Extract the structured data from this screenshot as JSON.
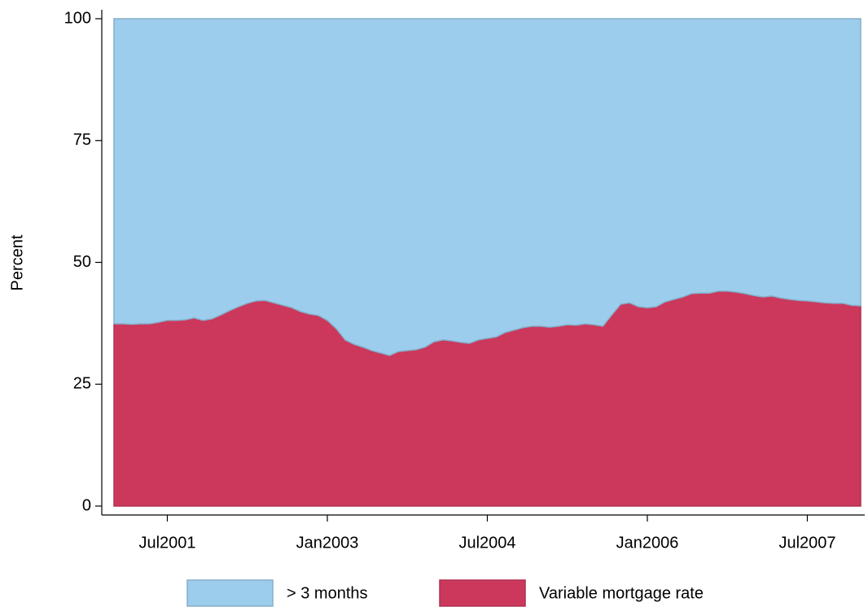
{
  "chart_data": {
    "type": "area",
    "stacked": true,
    "ylabel": "Percent",
    "x": [
      "2001-01",
      "2001-02",
      "2001-03",
      "2001-04",
      "2001-05",
      "2001-06",
      "2001-07",
      "2001-08",
      "2001-09",
      "2001-10",
      "2001-11",
      "2001-12",
      "2002-01",
      "2002-02",
      "2002-03",
      "2002-04",
      "2002-05",
      "2002-06",
      "2002-07",
      "2002-08",
      "2002-09",
      "2002-10",
      "2002-11",
      "2002-12",
      "2003-01",
      "2003-02",
      "2003-03",
      "2003-04",
      "2003-05",
      "2003-06",
      "2003-07",
      "2003-08",
      "2003-09",
      "2003-10",
      "2003-11",
      "2003-12",
      "2004-01",
      "2004-02",
      "2004-03",
      "2004-04",
      "2004-05",
      "2004-06",
      "2004-07",
      "2004-08",
      "2004-09",
      "2004-10",
      "2004-11",
      "2004-12",
      "2005-01",
      "2005-02",
      "2005-03",
      "2005-04",
      "2005-05",
      "2005-06",
      "2005-07",
      "2005-08",
      "2005-09",
      "2005-10",
      "2005-11",
      "2005-12",
      "2006-01",
      "2006-02",
      "2006-03",
      "2006-04",
      "2006-05",
      "2006-06",
      "2006-07",
      "2006-08",
      "2006-09",
      "2006-10",
      "2006-11",
      "2006-12",
      "2007-01",
      "2007-02",
      "2007-03",
      "2007-04",
      "2007-05",
      "2007-06",
      "2007-07",
      "2007-08",
      "2007-09",
      "2007-10",
      "2007-11",
      "2007-12",
      "2008-01"
    ],
    "series": [
      {
        "name": "> 3 months",
        "color": "#9ccdec",
        "values": [
          62.6,
          62.6,
          62.7,
          62.6,
          62.6,
          62.3,
          61.9,
          61.9,
          61.8,
          61.4,
          61.9,
          61.6,
          60.8,
          59.9,
          59.1,
          58.4,
          57.9,
          57.8,
          58.3,
          58.8,
          59.3,
          60.1,
          60.6,
          60.9,
          61.9,
          63.6,
          65.9,
          66.8,
          67.4,
          68.1,
          68.6,
          69.1,
          68.3,
          68.1,
          67.9,
          67.4,
          66.3,
          65.9,
          66.1,
          66.4,
          66.6,
          65.9,
          65.6,
          65.3,
          64.4,
          63.9,
          63.4,
          63.1,
          63.1,
          63.3,
          63.1,
          62.8,
          62.9,
          62.6,
          62.8,
          63.1,
          60.8,
          58.6,
          58.3,
          59.1,
          59.3,
          59.1,
          58.1,
          57.6,
          57.1,
          56.4,
          56.3,
          56.3,
          55.9,
          55.9,
          56.1,
          56.4,
          56.8,
          57.1,
          56.9,
          57.3,
          57.6,
          57.8,
          57.9,
          58.1,
          58.3,
          58.4,
          58.4,
          58.8,
          58.9
        ]
      },
      {
        "name": "Variable mortgage rate",
        "color": "#cc385c",
        "values": [
          37.4,
          37.4,
          37.3,
          37.4,
          37.4,
          37.7,
          38.1,
          38.1,
          38.2,
          38.6,
          38.1,
          38.4,
          39.2,
          40.1,
          40.9,
          41.6,
          42.1,
          42.2,
          41.7,
          41.2,
          40.7,
          39.9,
          39.4,
          39.1,
          38.1,
          36.4,
          34.1,
          33.2,
          32.6,
          31.9,
          31.4,
          30.9,
          31.7,
          31.9,
          32.1,
          32.6,
          33.7,
          34.1,
          33.9,
          33.6,
          33.4,
          34.1,
          34.4,
          34.7,
          35.6,
          36.1,
          36.6,
          36.9,
          36.9,
          36.7,
          36.9,
          37.2,
          37.1,
          37.4,
          37.2,
          36.9,
          39.2,
          41.4,
          41.7,
          40.9,
          40.7,
          40.9,
          41.9,
          42.4,
          42.9,
          43.6,
          43.7,
          43.7,
          44.1,
          44.1,
          43.9,
          43.6,
          43.2,
          42.9,
          43.1,
          42.7,
          42.4,
          42.2,
          42.1,
          41.9,
          41.7,
          41.6,
          41.6,
          41.2,
          41.1
        ]
      }
    ],
    "xlim": [
      "2001-01",
      "2008-01"
    ],
    "xticks": [
      {
        "value": "2001-07",
        "label": "Jul2001"
      },
      {
        "value": "2003-01",
        "label": "Jan2003"
      },
      {
        "value": "2004-07",
        "label": "Jul2004"
      },
      {
        "value": "2006-01",
        "label": "Jan2006"
      },
      {
        "value": "2007-07",
        "label": "Jul2007"
      }
    ],
    "ylim": [
      0,
      100
    ],
    "yticks": [
      0,
      25,
      50,
      75,
      100
    ],
    "grid": false,
    "legend": "bottom"
  }
}
